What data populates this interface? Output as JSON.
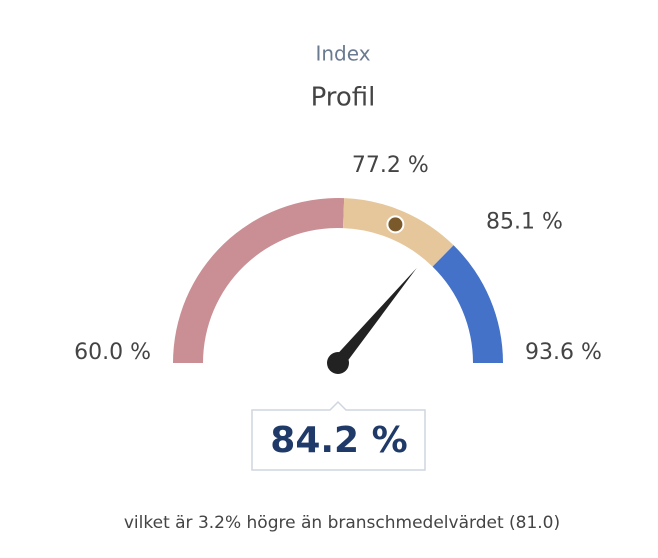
{
  "chart_data": {
    "type": "gauge",
    "title": "Index",
    "subtitle": "Profil",
    "ylim": [
      60.0,
      93.6
    ],
    "yticks": [
      {
        "value": 60.0,
        "label": "60.0 %"
      },
      {
        "value": 77.2,
        "label": "77.2 %"
      },
      {
        "value": 85.1,
        "label": "85.1 %"
      },
      {
        "value": 93.6,
        "label": "93.6 %"
      }
    ],
    "band_colors": [
      "#c98f94",
      "#e6c79c",
      "#4472c8"
    ],
    "value": 84.2,
    "value_label": "84.2 %",
    "benchmark": 81.0,
    "benchmark_color": "#7a5a2a",
    "footnote": "vilket är 3.2% högre än branschmedelvärdet (81.0)"
  }
}
